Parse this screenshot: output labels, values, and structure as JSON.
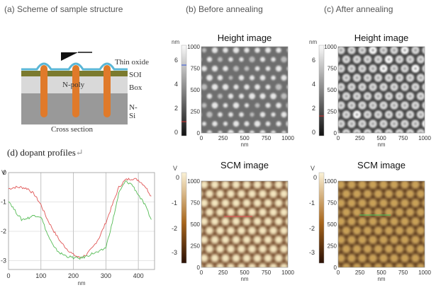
{
  "panels": {
    "a": {
      "label": "(a) Scheme of sample structure"
    },
    "b": {
      "label": "(b) Before annealing"
    },
    "c": {
      "label": "(c) After annealing"
    },
    "d": {
      "label": "(d) dopant profiles",
      "return_glyph": "↵"
    }
  },
  "scheme": {
    "layers": [
      "Thin oxide",
      "SOI",
      "Box",
      "N-Si"
    ],
    "inner_label": "N-poly",
    "caption": "Cross section"
  },
  "images": {
    "height_title": "Height image",
    "scm_title": "SCM image",
    "height_unit": "nm",
    "scm_unit": "V",
    "height_scale_ticks": [
      "6",
      "4",
      "2",
      "0"
    ],
    "scm_scale_ticks": [
      "0",
      "-1",
      "-2",
      "-3"
    ],
    "axis_ticks": [
      "0",
      "250",
      "500",
      "750",
      "1000"
    ],
    "axis_label": "nm"
  },
  "colors": {
    "profile_red": "#e05555",
    "profile_green": "#55bb55",
    "pillar": "#e07a2a",
    "scm_dark": "#3a1a08",
    "scm_light": "#f4e6c0"
  },
  "chart_data": {
    "type": "line",
    "xlabel": "nm",
    "ylabel": "V",
    "xlim": [
      0,
      450
    ],
    "ylim": [
      -3.3,
      0
    ],
    "x_ticks": [
      "0",
      "100",
      "200",
      "300",
      "400"
    ],
    "y_ticks": [
      "0",
      "-1",
      "-2",
      "-3"
    ],
    "grid": true,
    "series": [
      {
        "color": "#e05555",
        "x": [
          0,
          20,
          40,
          60,
          80,
          100,
          120,
          140,
          160,
          180,
          200,
          220,
          240,
          260,
          280,
          300,
          320,
          340,
          360,
          380,
          400,
          420,
          440
        ],
        "y": [
          -0.55,
          -0.5,
          -0.5,
          -0.55,
          -0.75,
          -1.1,
          -1.6,
          -2.0,
          -2.35,
          -2.6,
          -2.8,
          -2.9,
          -2.8,
          -2.55,
          -2.2,
          -1.7,
          -1.1,
          -0.5,
          -0.25,
          -0.2,
          -0.25,
          -0.45,
          -0.8
        ]
      },
      {
        "color": "#55bb55",
        "x": [
          0,
          20,
          40,
          60,
          80,
          100,
          120,
          140,
          160,
          180,
          200,
          220,
          240,
          260,
          280,
          300,
          320,
          340,
          360,
          380,
          400,
          420,
          440
        ],
        "y": [
          -0.95,
          -1.3,
          -1.6,
          -1.55,
          -1.45,
          -1.5,
          -2.1,
          -2.55,
          -2.75,
          -2.85,
          -2.9,
          -2.92,
          -2.85,
          -2.75,
          -2.7,
          -2.55,
          -1.7,
          -0.7,
          -0.3,
          -0.4,
          -0.75,
          -1.1,
          -1.6
        ]
      }
    ]
  }
}
